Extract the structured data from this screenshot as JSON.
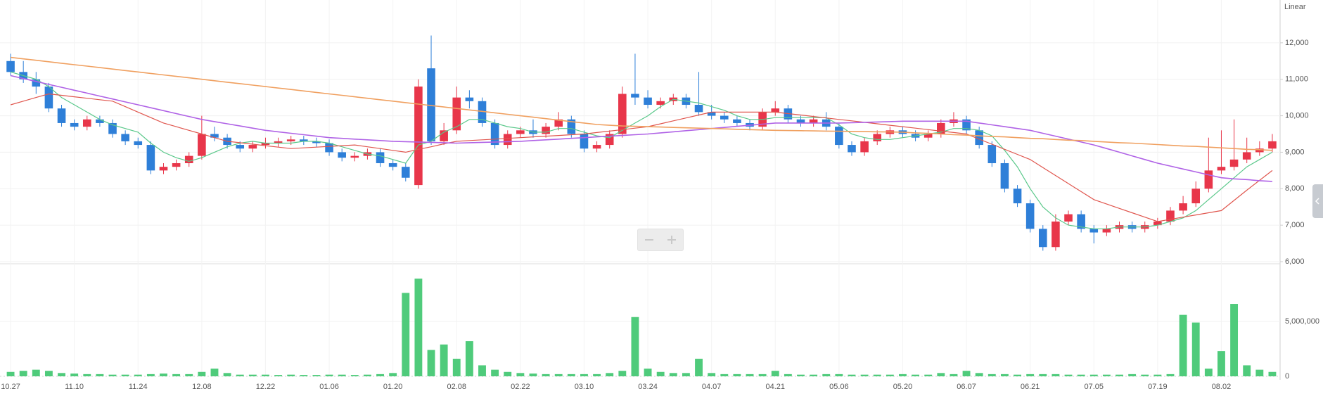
{
  "chart_data": {
    "type": "candlestick",
    "scale_label": "Linear",
    "grid": true,
    "up_color": "#e8364a",
    "down_color": "#2e7fd8",
    "categories": [
      "10.27",
      null,
      null,
      null,
      null,
      "11.10",
      null,
      null,
      null,
      null,
      "11.24",
      null,
      null,
      null,
      null,
      "12.08",
      null,
      null,
      null,
      null,
      "12.22",
      null,
      null,
      null,
      null,
      "01.06",
      null,
      null,
      null,
      null,
      "01.20",
      null,
      null,
      null,
      null,
      "02.08",
      null,
      null,
      null,
      null,
      "02.22",
      null,
      null,
      null,
      null,
      "03.10",
      null,
      null,
      null,
      null,
      "03.24",
      null,
      null,
      null,
      null,
      "04.07",
      null,
      null,
      null,
      null,
      "04.21",
      null,
      null,
      null,
      null,
      "05.06",
      null,
      null,
      null,
      null,
      "05.20",
      null,
      null,
      null,
      null,
      "06.07",
      null,
      null,
      null,
      null,
      "06.21",
      null,
      null,
      null,
      null,
      "07.05",
      null,
      null,
      null,
      null,
      "07.19",
      null,
      null,
      null,
      null,
      "08.02",
      null,
      null,
      null,
      null
    ],
    "open": [
      11500,
      11200,
      11000,
      10800,
      10200,
      9800,
      9700,
      9900,
      9800,
      9500,
      9300,
      9200,
      8500,
      8600,
      8700,
      8900,
      9500,
      9400,
      9200,
      9100,
      9200,
      9250,
      9300,
      9350,
      9300,
      9250,
      9000,
      8850,
      8900,
      9000,
      8700,
      8600,
      8100,
      11300,
      9300,
      9600,
      10500,
      10400,
      9800,
      9200,
      9500,
      9600,
      9500,
      9700,
      9900,
      9500,
      9100,
      9200,
      9500,
      10600,
      10500,
      10300,
      10400,
      10500,
      10300,
      10100,
      10000,
      9900,
      9800,
      9700,
      10100,
      10200,
      9900,
      9800,
      9900,
      9700,
      9200,
      9000,
      9300,
      9500,
      9600,
      9500,
      9400,
      9500,
      9800,
      9900,
      9600,
      9200,
      8700,
      8000,
      7600,
      6900,
      6400,
      7100,
      7300,
      6900,
      6800,
      6900,
      7000,
      6900,
      7000,
      7100,
      7400,
      7600,
      8000,
      8500,
      8600,
      8800,
      9000,
      9100
    ],
    "high": [
      11700,
      11500,
      11200,
      10900,
      10300,
      9900,
      10000,
      10000,
      9900,
      9600,
      9400,
      9300,
      8700,
      8800,
      9000,
      10000,
      9700,
      9500,
      9300,
      9300,
      9400,
      9400,
      9450,
      9450,
      9400,
      9350,
      9100,
      9000,
      9100,
      9100,
      8800,
      8700,
      11000,
      12200,
      9800,
      10800,
      10700,
      10500,
      9900,
      9600,
      9700,
      9900,
      9800,
      10100,
      10000,
      9600,
      9300,
      9600,
      10800,
      11700,
      10700,
      10500,
      10600,
      10600,
      11200,
      10300,
      10100,
      10000,
      9900,
      10200,
      10400,
      10300,
      10000,
      10000,
      10100,
      9800,
      9300,
      9400,
      9600,
      9700,
      9700,
      9600,
      9600,
      9900,
      10100,
      10000,
      9700,
      9300,
      8800,
      8100,
      7700,
      7000,
      7300,
      7400,
      7400,
      7000,
      7000,
      7100,
      7100,
      7100,
      7200,
      7500,
      7800,
      8200,
      9400,
      9600,
      9900,
      9400,
      9300,
      9500
    ],
    "low": [
      11100,
      10900,
      10600,
      10100,
      9700,
      9600,
      9600,
      9700,
      9400,
      9200,
      9100,
      8400,
      8400,
      8500,
      8600,
      8800,
      9300,
      9100,
      9000,
      9000,
      9100,
      9150,
      9200,
      9200,
      9150,
      8900,
      8750,
      8750,
      8800,
      8600,
      8500,
      8200,
      8000,
      9200,
      9200,
      9500,
      10200,
      9700,
      9100,
      9100,
      9400,
      9400,
      9400,
      9600,
      9400,
      9000,
      9000,
      9100,
      9400,
      10300,
      10200,
      10200,
      10300,
      10200,
      10000,
      9900,
      9800,
      9700,
      9600,
      9600,
      10000,
      9800,
      9700,
      9700,
      9600,
      9100,
      8900,
      8900,
      9200,
      9400,
      9400,
      9300,
      9300,
      9400,
      9700,
      9500,
      9100,
      8600,
      7900,
      7500,
      6800,
      6300,
      6300,
      7000,
      6800,
      6500,
      6700,
      6800,
      6800,
      6800,
      6900,
      7000,
      7300,
      7500,
      7900,
      8400,
      8500,
      8700,
      8900,
      9000
    ],
    "close": [
      11200,
      11000,
      10800,
      10200,
      9800,
      9700,
      9900,
      9800,
      9500,
      9300,
      9200,
      8500,
      8600,
      8700,
      8900,
      9500,
      9400,
      9200,
      9100,
      9200,
      9250,
      9300,
      9350,
      9300,
      9250,
      9000,
      8850,
      8900,
      9000,
      8700,
      8600,
      8300,
      10800,
      9300,
      9600,
      10500,
      10400,
      9800,
      9200,
      9500,
      9600,
      9500,
      9700,
      9900,
      9500,
      9100,
      9200,
      9500,
      10600,
      10500,
      10300,
      10400,
      10500,
      10300,
      10100,
      10000,
      9900,
      9800,
      9700,
      10100,
      10200,
      9900,
      9800,
      9900,
      9700,
      9200,
      9000,
      9300,
      9500,
      9600,
      9500,
      9400,
      9500,
      9800,
      9900,
      9600,
      9200,
      8700,
      8000,
      7600,
      6900,
      6400,
      7100,
      7300,
      6900,
      6800,
      6900,
      7000,
      6900,
      7000,
      7100,
      7400,
      7600,
      8000,
      8500,
      8600,
      8800,
      9000,
      9100,
      9300
    ],
    "ylim": [
      6000,
      13000
    ],
    "yticks": [
      {
        "value": 6000,
        "label": "6,000"
      },
      {
        "value": 7000,
        "label": "7,000"
      },
      {
        "value": 8000,
        "label": "8,000"
      },
      {
        "value": 9000,
        "label": "9,000"
      },
      {
        "value": 10000,
        "label": "10,000"
      },
      {
        "value": 11000,
        "label": "11,000"
      },
      {
        "value": 12000,
        "label": "12,000"
      }
    ],
    "lines": [
      {
        "color": "#5ac88a",
        "values": [
          11200,
          11100,
          11000,
          10800,
          10500,
          10300,
          10100,
          9900,
          9750,
          9650,
          9550,
          9250,
          9000,
          8850,
          8750,
          8850,
          9000,
          9150,
          9250,
          9300,
          9250,
          9250,
          9250,
          9300,
          9300,
          9250,
          9150,
          9050,
          8950,
          8900,
          8800,
          8700,
          9200,
          9300,
          9550,
          9700,
          9900,
          9900,
          9800,
          9700,
          9650,
          9550,
          9550,
          9650,
          9650,
          9550,
          9450,
          9400,
          9600,
          9800,
          10000,
          10250,
          10450,
          10400,
          10350,
          10250,
          10150,
          10000,
          9900,
          9900,
          9950,
          9950,
          9950,
          9950,
          9950,
          9750,
          9500,
          9400,
          9350,
          9350,
          9400,
          9450,
          9500,
          9550,
          9650,
          9650,
          9600,
          9450,
          9050,
          8600,
          8000,
          7500,
          7200,
          7000,
          6950,
          6900,
          6900,
          6950,
          6950,
          6950,
          7000,
          7100,
          7200,
          7400,
          7700,
          8000,
          8300,
          8600,
          8800,
          9000
        ]
      },
      {
        "color": "#e0564e",
        "values": [
          10300,
          10400,
          10500,
          10600,
          10560,
          10520,
          10480,
          10440,
          10400,
          10250,
          10100,
          9950,
          9800,
          9700,
          9600,
          9500,
          9400,
          9300,
          9260,
          9220,
          9180,
          9140,
          9100,
          9120,
          9140,
          9160,
          9180,
          9200,
          9150,
          9100,
          9050,
          9000,
          9080,
          9150,
          9230,
          9300,
          9320,
          9340,
          9360,
          9380,
          9400,
          9420,
          9440,
          9460,
          9480,
          9500,
          9540,
          9580,
          9620,
          9660,
          9700,
          9780,
          9860,
          9940,
          10020,
          10100,
          10100,
          10100,
          10100,
          10100,
          10100,
          10060,
          10020,
          9980,
          9940,
          9900,
          9860,
          9820,
          9780,
          9740,
          9700,
          9660,
          9620,
          9580,
          9540,
          9500,
          9360,
          9220,
          9080,
          8940,
          8800,
          8580,
          8360,
          8140,
          7920,
          7700,
          7580,
          7460,
          7340,
          7220,
          7100,
          7160,
          7220,
          7280,
          7340,
          7400,
          7680,
          7960,
          8230,
          8500
        ]
      },
      {
        "color": "#b063e6",
        "values": [
          11100,
          11020,
          10940,
          10860,
          10780,
          10700,
          10620,
          10540,
          10460,
          10380,
          10300,
          10220,
          10140,
          10060,
          9980,
          9900,
          9840,
          9780,
          9720,
          9660,
          9600,
          9560,
          9520,
          9480,
          9440,
          9400,
          9380,
          9360,
          9340,
          9320,
          9300,
          9290,
          9280,
          9270,
          9260,
          9250,
          9260,
          9270,
          9280,
          9290,
          9300,
          9320,
          9340,
          9360,
          9380,
          9400,
          9420,
          9440,
          9460,
          9480,
          9500,
          9530,
          9560,
          9590,
          9620,
          9650,
          9680,
          9710,
          9740,
          9770,
          9800,
          9800,
          9800,
          9800,
          9800,
          9800,
          9810,
          9820,
          9830,
          9840,
          9850,
          9850,
          9850,
          9850,
          9850,
          9850,
          9800,
          9750,
          9700,
          9650,
          9600,
          9520,
          9440,
          9360,
          9280,
          9200,
          9100,
          9000,
          8900,
          8800,
          8700,
          8620,
          8540,
          8460,
          8380,
          8300,
          8270,
          8250,
          8220,
          8200
        ]
      },
      {
        "color": "#f0a060",
        "values": [
          11600,
          11560,
          11520,
          11480,
          11440,
          11400,
          11360,
          11320,
          11280,
          11240,
          11200,
          11160,
          11120,
          11080,
          11040,
          11000,
          10960,
          10920,
          10880,
          10840,
          10800,
          10760,
          10720,
          10680,
          10640,
          10600,
          10560,
          10520,
          10480,
          10440,
          10400,
          10360,
          10320,
          10280,
          10240,
          10200,
          10160,
          10120,
          10080,
          10040,
          10000,
          9960,
          9920,
          9880,
          9840,
          9800,
          9760,
          9740,
          9720,
          9710,
          9700,
          9690,
          9680,
          9670,
          9660,
          9650,
          9640,
          9630,
          9620,
          9610,
          9600,
          9595,
          9590,
          9585,
          9580,
          9575,
          9570,
          9565,
          9560,
          9555,
          9550,
          9530,
          9520,
          9500,
          9480,
          9470,
          9450,
          9430,
          9420,
          9400,
          9380,
          9370,
          9350,
          9330,
          9320,
          9300,
          9280,
          9260,
          9250,
          9230,
          9210,
          9190,
          9170,
          9160,
          9140,
          9120,
          9100,
          9080,
          9070,
          9050
        ]
      }
    ],
    "volume": {
      "color": "#4fcb7b",
      "values": [
        400000,
        500000,
        600000,
        500000,
        300000,
        250000,
        200000,
        200000,
        150000,
        150000,
        150000,
        200000,
        250000,
        200000,
        200000,
        400000,
        700000,
        300000,
        150000,
        150000,
        150000,
        120000,
        150000,
        120000,
        120000,
        150000,
        150000,
        120000,
        150000,
        200000,
        300000,
        7600000,
        8900000,
        2400000,
        2900000,
        1600000,
        3200000,
        1000000,
        600000,
        400000,
        300000,
        250000,
        200000,
        200000,
        200000,
        200000,
        200000,
        300000,
        500000,
        5400000,
        700000,
        400000,
        300000,
        300000,
        1600000,
        300000,
        200000,
        200000,
        200000,
        200000,
        500000,
        200000,
        150000,
        150000,
        200000,
        200000,
        150000,
        150000,
        150000,
        150000,
        200000,
        150000,
        150000,
        300000,
        200000,
        500000,
        300000,
        200000,
        200000,
        150000,
        200000,
        200000,
        200000,
        150000,
        150000,
        150000,
        150000,
        150000,
        200000,
        150000,
        150000,
        200000,
        5600000,
        4900000,
        700000,
        2300000,
        6600000,
        1000000,
        600000,
        400000
      ],
      "ylim": [
        0,
        10000000
      ],
      "yticks": [
        0,
        {
          "value": 5000000,
          "label": "5,000,000"
        }
      ]
    }
  }
}
